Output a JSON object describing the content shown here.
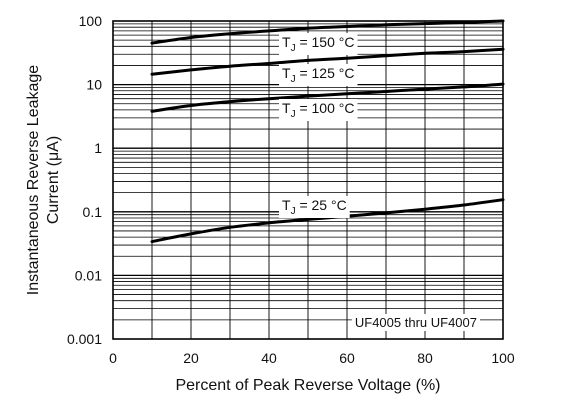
{
  "chart_data": {
    "type": "line",
    "title": "",
    "xlabel": "Percent of Peak Reverse Voltage (%)",
    "ylabel": "Instantaneous Reverse Leakage Current (μA)",
    "ylabel_lines": [
      "Instantaneous Reverse Leakage",
      "Current (μA)"
    ],
    "xlim": [
      0,
      100
    ],
    "ylim": [
      0.001,
      100
    ],
    "yscale": "log",
    "grid": true,
    "x_ticks": [
      0,
      20,
      40,
      60,
      80,
      100
    ],
    "x_tick_labels": [
      "0",
      "20",
      "40",
      "60",
      "80",
      "100"
    ],
    "y_ticks": [
      0.001,
      0.01,
      0.1,
      1,
      10,
      100
    ],
    "y_tick_labels": [
      "0.001",
      "0.01",
      "0.1",
      "1",
      "10",
      "100"
    ],
    "series": [
      {
        "name": "TJ = 150 °C",
        "label_main": "T",
        "label_sub": "J",
        "label_rest": " = 150 °C",
        "x": [
          10,
          20,
          30,
          40,
          50,
          60,
          70,
          80,
          90,
          100
        ],
        "y": [
          45,
          55,
          63,
          70,
          77,
          82,
          87,
          91,
          95,
          100
        ]
      },
      {
        "name": "TJ = 125 °C",
        "label_main": "T",
        "label_sub": "J",
        "label_rest": " = 125 °C",
        "x": [
          10,
          20,
          30,
          40,
          50,
          60,
          70,
          80,
          90,
          100
        ],
        "y": [
          14.5,
          17,
          19.5,
          21.5,
          24,
          26,
          28.5,
          31,
          33,
          36
        ]
      },
      {
        "name": "TJ = 100 °C",
        "label_main": "T",
        "label_sub": "J",
        "label_rest": " = 100 °C",
        "x": [
          10,
          20,
          30,
          40,
          50,
          60,
          70,
          80,
          90,
          100
        ],
        "y": [
          3.8,
          4.7,
          5.4,
          6.0,
          6.6,
          7.2,
          7.8,
          8.5,
          9.2,
          10.2
        ]
      },
      {
        "name": "TJ = 25 °C",
        "label_main": "T",
        "label_sub": "J",
        "label_rest": " = 25 °C",
        "x": [
          10,
          20,
          30,
          40,
          50,
          60,
          70,
          80,
          90,
          100
        ],
        "y": [
          0.034,
          0.045,
          0.057,
          0.067,
          0.076,
          0.085,
          0.096,
          0.11,
          0.128,
          0.155
        ]
      }
    ],
    "annotations": [
      {
        "text": "UF4005 thru UF4007"
      }
    ]
  }
}
